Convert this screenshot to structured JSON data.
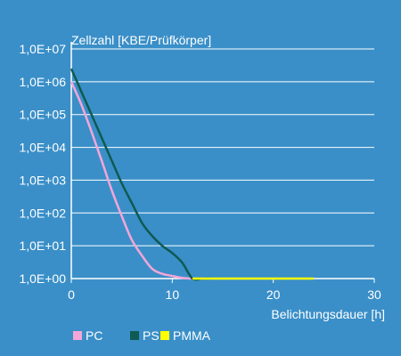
{
  "chart_data": {
    "type": "line",
    "title": "",
    "ylabel": "Zellzahl [KBE/Prüfkörper]",
    "xlabel": "Belichtungsdauer [h]",
    "y_scale": "log",
    "xlim": [
      0,
      30
    ],
    "ylim": [
      1,
      10000000
    ],
    "grid": "horizontal",
    "legend_position": "bottom-left",
    "x_ticks": [
      0,
      10,
      20,
      30
    ],
    "x_tick_labels": [
      "0",
      "10",
      "20",
      "30"
    ],
    "y_ticks": [
      1,
      10,
      100,
      1000,
      10000,
      100000,
      1000000,
      10000000
    ],
    "y_tick_labels": [
      "1,0E+00",
      "1,0E+01",
      "1,0E+02",
      "1,0E+03",
      "1,0E+04",
      "1,0E+05",
      "1,0E+06",
      "1,0E+07"
    ],
    "series": [
      {
        "name": "PC",
        "color": "#f4a6d8",
        "x": [
          0,
          1,
          2,
          3,
          4,
          5,
          6,
          7,
          8,
          9,
          10,
          11,
          12
        ],
        "y": [
          1000000,
          200000,
          30000,
          4000,
          500,
          80,
          15,
          5,
          2,
          1.4,
          1.2,
          1.05,
          1
        ]
      },
      {
        "name": "PS",
        "color": "#0f5a52",
        "x": [
          0,
          1,
          2,
          3,
          4,
          5,
          6,
          7,
          8,
          9,
          10,
          11,
          12,
          13,
          14
        ],
        "y": [
          2500000,
          500000,
          100000,
          20000,
          4000,
          800,
          200,
          50,
          20,
          10,
          6,
          3,
          1,
          1,
          1
        ]
      },
      {
        "name": "PMMA",
        "color": "#ffff00",
        "x": [
          12,
          24
        ],
        "y": [
          1,
          1
        ]
      }
    ],
    "style": {
      "background": "#3a8fc8",
      "grid_color": "#ffffff",
      "text_color": "#ffffff"
    }
  }
}
